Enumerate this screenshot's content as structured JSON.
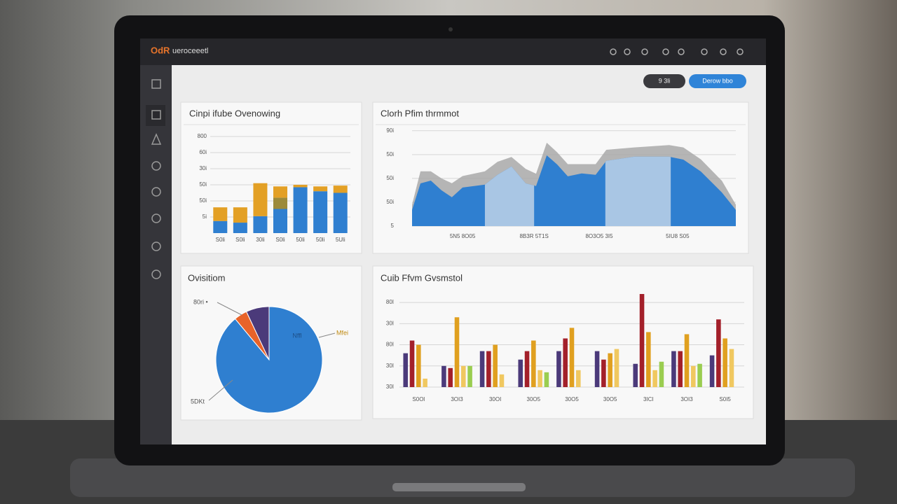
{
  "header": {
    "logo": "OdR",
    "title": "ueroceeetl"
  },
  "buttons": [
    "9 3li",
    "Derow bbo"
  ],
  "chart_data": [
    {
      "type": "bar",
      "stacked": true,
      "title": "Cinpi ifube Ovenowing",
      "categories": [
        "S0li",
        "S0li",
        "30li",
        "S0li",
        "50li",
        "50li",
        "5Uli"
      ],
      "series": [
        {
          "color": "#2f7fd0",
          "values": [
            0.75,
            0.65,
            1.05,
            1.5,
            2.85,
            2.6,
            2.5
          ]
        },
        {
          "color": "#9c8a3a",
          "values": [
            null,
            null,
            null,
            0.7,
            null,
            null,
            null
          ]
        },
        {
          "color": "#e3a025",
          "values": [
            0.85,
            0.95,
            2.05,
            0.7,
            0.15,
            0.3,
            0.45
          ]
        }
      ],
      "ylim": [
        0,
        6
      ],
      "yticks": [
        {
          "value": 6,
          "label": "800"
        },
        {
          "value": 5,
          "label": "60i"
        },
        {
          "value": 4,
          "label": "30i"
        },
        {
          "value": 3,
          "label": "50i"
        },
        {
          "value": 2,
          "label": "50i"
        },
        {
          "value": 1,
          "label": "5i"
        }
      ],
      "grid": true
    },
    {
      "type": "area",
      "title": "Clorh Pfim thrmmot",
      "x": [
        0,
        2.6,
        5.8,
        9.1,
        12.3,
        15.6,
        22.5,
        26.4,
        30.7,
        35.1,
        38.3,
        41.6,
        44.8,
        48.1,
        52.4,
        56.7,
        60,
        68.6,
        79.4,
        83.8,
        89.2,
        95.7,
        100
      ],
      "series": [
        {
          "color": "#a9a9a9",
          "values": [
            0.9,
            2.3,
            2.3,
            2.0,
            1.8,
            2.1,
            2.3,
            2.7,
            2.9,
            2.4,
            2.2,
            3.5,
            3.1,
            2.6,
            2.6,
            2.6,
            3.2,
            3.3,
            3.4,
            3.3,
            2.8,
            1.9,
            0.9
          ]
        },
        {
          "color": "#2f7fd0",
          "values": [
            0.68,
            1.79,
            1.91,
            1.5,
            1.21,
            1.62,
            1.74,
            2.15,
            2.5,
            1.79,
            1.68,
            2.97,
            2.59,
            2.09,
            2.21,
            2.15,
            2.74,
            2.91,
            2.91,
            2.79,
            2.29,
            1.41,
            0.68
          ]
        }
      ],
      "xlim": [
        0,
        100
      ],
      "xticks": [
        {
          "value": 15.6,
          "label": "5N5 8O05"
        },
        {
          "value": 37.7,
          "label": "8B3R 5T1S"
        },
        {
          "value": 57.8,
          "label": "8O3O5 3I5"
        },
        {
          "value": 82,
          "label": "5IU8 S05"
        }
      ],
      "ylim": [
        0,
        4.2
      ],
      "yticks": [
        {
          "value": 4,
          "label": "90i"
        },
        {
          "value": 3,
          "label": "50i"
        },
        {
          "value": 2,
          "label": "50i"
        },
        {
          "value": 1,
          "label": "50i"
        },
        {
          "value": 0,
          "label": "5"
        }
      ],
      "grid": true
    },
    {
      "type": "pie",
      "title": "Ovisitiom",
      "categories": [
        "Nffl",
        "80ri •",
        null
      ],
      "values": [
        89,
        4,
        7
      ],
      "colors": [
        "#2f7fd0",
        "#e8632a",
        "#4b3a7a"
      ],
      "annotations": [
        "5DKt",
        "Mfei"
      ]
    },
    {
      "type": "bar",
      "title": "Cuib Ffvm Gvsmstol",
      "categories": [
        "S0Ol",
        "3OI3",
        "30OI",
        "30O5",
        "30O5",
        "30O5",
        "3ICI",
        "3OI3",
        "S0I5"
      ],
      "series": [
        {
          "color": "#4b3a7a",
          "values": [
            1.6,
            1.0,
            1.7,
            1.3,
            1.7,
            1.7,
            1.1,
            1.7,
            1.5
          ]
        },
        {
          "color": "#a3202a",
          "values": [
            2.2,
            0.9,
            1.7,
            1.7,
            2.3,
            1.3,
            4.4,
            1.7,
            3.2
          ]
        },
        {
          "color": "#e0a020",
          "values": [
            2.0,
            3.3,
            2.0,
            2.2,
            2.8,
            1.6,
            2.6,
            2.5,
            2.3
          ]
        },
        {
          "color": "#f0c860",
          "values": [
            0.4,
            1.0,
            0.6,
            0.8,
            0.8,
            1.8,
            0.8,
            1.0,
            1.8
          ]
        },
        {
          "color": "#9acd50",
          "values": [
            null,
            1.0,
            null,
            0.7,
            null,
            null,
            1.2,
            1.1,
            null
          ]
        }
      ],
      "ylim": [
        0,
        4.4
      ],
      "yticks": [
        {
          "value": 4,
          "label": "80I"
        },
        {
          "value": 3,
          "label": "30I"
        },
        {
          "value": 2,
          "label": "80I"
        },
        {
          "value": 1,
          "label": "30I"
        },
        {
          "value": 0,
          "label": "30I"
        }
      ],
      "grid": true
    }
  ]
}
